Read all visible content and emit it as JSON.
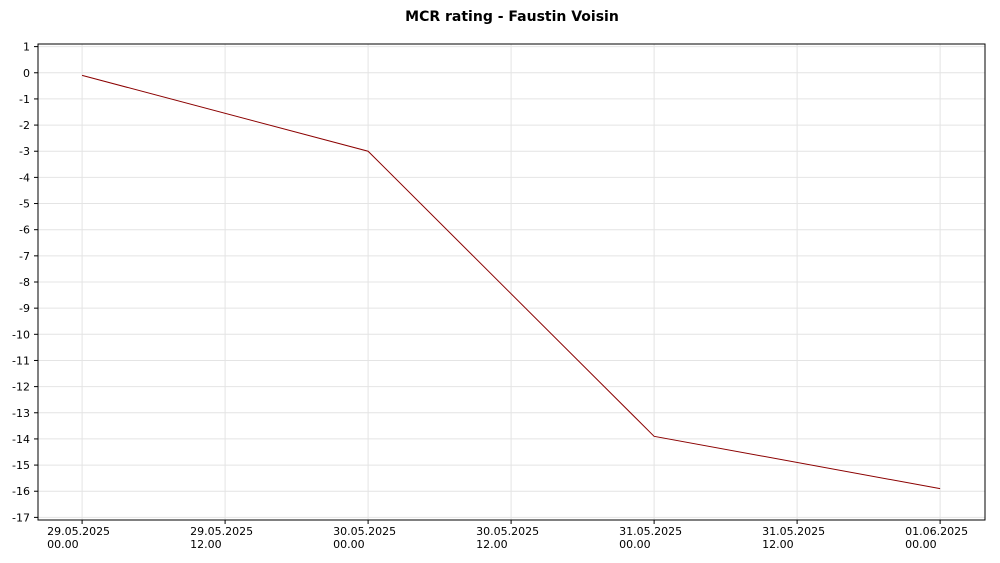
{
  "chart_data": {
    "type": "line",
    "title": "MCR rating - Faustin Voisin",
    "x": [
      "29.05.2025 00.00",
      "30.05.2025 00.00",
      "31.05.2025 00.00",
      "01.06.2025 00.00"
    ],
    "series": [
      {
        "name": "MCR rating",
        "color": "#8b0000",
        "values": [
          -0.1,
          -3.0,
          -13.9,
          -15.9
        ]
      }
    ],
    "xlim": [
      "28.05.2025 20.18",
      "01.06.2025 03.46"
    ],
    "xticks": [
      "29.05.2025 00.00",
      "29.05.2025 12.00",
      "30.05.2025 00.00",
      "30.05.2025 12.00",
      "31.05.2025 00.00",
      "31.05.2025 12.00",
      "01.06.2025 00.00"
    ],
    "ylim": [
      -17.1,
      1.1
    ],
    "yticks": [
      1,
      0,
      -1,
      -2,
      -3,
      -4,
      -5,
      -6,
      -7,
      -8,
      -9,
      -10,
      -11,
      -12,
      -13,
      -14,
      -15,
      -16,
      -17
    ],
    "grid": true
  }
}
